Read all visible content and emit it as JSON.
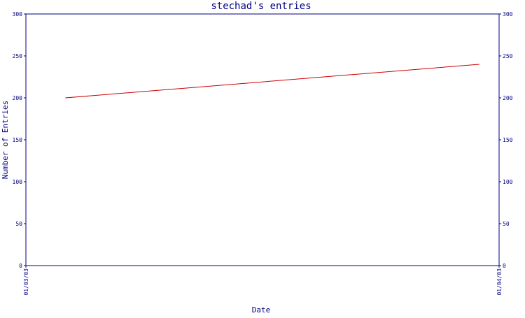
{
  "chart_data": {
    "type": "line",
    "title": "stechad's entries",
    "xlabel": "Date",
    "ylabel": "Number of Entries",
    "ylim": [
      0,
      300
    ],
    "y_ticks": [
      0,
      50,
      100,
      150,
      200,
      250,
      300
    ],
    "x_ticks": [
      "01/03/03",
      "01/04/03"
    ],
    "x_range": [
      "2003-01-03",
      "2003-01-04"
    ],
    "series": [
      {
        "color": "#cc0000",
        "points": [
          {
            "x": "2003-01-03T02:00",
            "y": 200
          },
          {
            "x": "2003-01-03T23:00",
            "y": 240
          }
        ]
      }
    ],
    "grid": false,
    "legend": "none",
    "colors": {
      "axis": "#000080",
      "text": "#000080",
      "line": "#cc0000",
      "background": "#ffffff"
    }
  }
}
